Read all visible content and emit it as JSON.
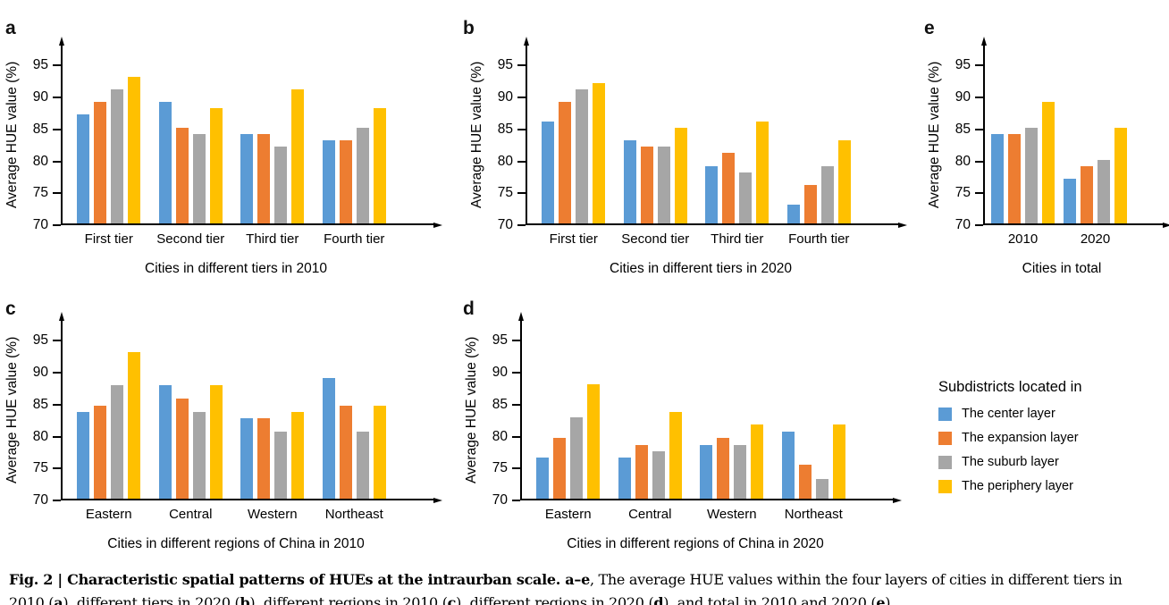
{
  "colors": {
    "center": "#5B9BD5",
    "expansion": "#ED7D31",
    "suburb": "#A6A6A6",
    "periphery": "#FFC000",
    "axis": "#000000"
  },
  "chart_data": [
    {
      "type": "bar",
      "panel_letter": "a",
      "ylabel": "Average HUE value (%)",
      "xlabel": "Cities in different tiers in 2010",
      "ylim": [
        70,
        95
      ],
      "yticks": [
        70,
        75,
        80,
        85,
        90,
        95
      ],
      "grid": false,
      "categories": [
        "First tier",
        "Second tier",
        "Third tier",
        "Fourth tier"
      ],
      "series": [
        {
          "name": "The center layer",
          "color": "#5B9BD5",
          "values": [
            87,
            89,
            84,
            83
          ]
        },
        {
          "name": "The expansion layer",
          "color": "#ED7D31",
          "values": [
            89,
            85,
            84,
            83
          ]
        },
        {
          "name": "The suburb layer",
          "color": "#A6A6A6",
          "values": [
            91,
            84,
            82,
            85
          ]
        },
        {
          "name": "The periphery layer",
          "color": "#FFC000",
          "values": [
            93,
            88,
            91,
            88
          ]
        }
      ]
    },
    {
      "type": "bar",
      "panel_letter": "b",
      "ylabel": "Average HUE value (%)",
      "xlabel": "Cities in different tiers in 2020",
      "ylim": [
        70,
        95
      ],
      "yticks": [
        70,
        75,
        80,
        85,
        90,
        95
      ],
      "grid": false,
      "categories": [
        "First tier",
        "Second tier",
        "Third tier",
        "Fourth tier"
      ],
      "series": [
        {
          "name": "The center layer",
          "color": "#5B9BD5",
          "values": [
            86,
            83,
            79,
            73
          ]
        },
        {
          "name": "The expansion layer",
          "color": "#ED7D31",
          "values": [
            89,
            82,
            81,
            76
          ]
        },
        {
          "name": "The suburb layer",
          "color": "#A6A6A6",
          "values": [
            91,
            82,
            78,
            79
          ]
        },
        {
          "name": "The periphery layer",
          "color": "#FFC000",
          "values": [
            92,
            85,
            86,
            83
          ]
        }
      ]
    },
    {
      "type": "bar",
      "panel_letter": "e",
      "ylabel": "Average HUE value (%)",
      "xlabel": "Cities in total",
      "ylim": [
        70,
        95
      ],
      "yticks": [
        70,
        75,
        80,
        85,
        90,
        95
      ],
      "grid": false,
      "categories": [
        "2010",
        "2020"
      ],
      "series": [
        {
          "name": "The center layer",
          "color": "#5B9BD5",
          "values": [
            84,
            77
          ]
        },
        {
          "name": "The expansion layer",
          "color": "#ED7D31",
          "values": [
            84,
            79
          ]
        },
        {
          "name": "The suburb layer",
          "color": "#A6A6A6",
          "values": [
            85,
            80
          ]
        },
        {
          "name": "The periphery layer",
          "color": "#FFC000",
          "values": [
            89,
            85
          ]
        }
      ]
    },
    {
      "type": "bar",
      "panel_letter": "c",
      "ylabel": "Average HUE value (%)",
      "xlabel": "Cities in different regions of China in 2010",
      "ylim": [
        70,
        95
      ],
      "yticks": [
        70,
        75,
        80,
        85,
        90,
        95
      ],
      "grid": false,
      "categories": [
        "Eastern",
        "Central",
        "Western",
        "Northeast"
      ],
      "series": [
        {
          "name": "The center layer",
          "color": "#5B9BD5",
          "values": [
            83.6,
            87.8,
            82.6,
            88.9
          ]
        },
        {
          "name": "The expansion layer",
          "color": "#ED7D31",
          "values": [
            84.6,
            85.7,
            82.6,
            84.6
          ]
        },
        {
          "name": "The suburb layer",
          "color": "#A6A6A6",
          "values": [
            87.8,
            83.6,
            80.5,
            80.5
          ]
        },
        {
          "name": "The periphery layer",
          "color": "#FFC000",
          "values": [
            93,
            87.8,
            83.6,
            84.6
          ]
        }
      ]
    },
    {
      "type": "bar",
      "panel_letter": "d",
      "ylabel": "Average HUE value (%)",
      "xlabel": "Cities in different regions of China in 2020",
      "ylim": [
        70,
        95
      ],
      "yticks": [
        70,
        75,
        80,
        85,
        90,
        95
      ],
      "grid": false,
      "categories": [
        "Eastern",
        "Central",
        "Western",
        "Northeast"
      ],
      "series": [
        {
          "name": "The center layer",
          "color": "#5B9BD5",
          "values": [
            76.4,
            76.4,
            78.4,
            80.5
          ]
        },
        {
          "name": "The expansion layer",
          "color": "#ED7D31",
          "values": [
            79.5,
            78.4,
            79.5,
            75.3
          ]
        },
        {
          "name": "The suburb layer",
          "color": "#A6A6A6",
          "values": [
            82.7,
            77.4,
            78.4,
            73.1
          ]
        },
        {
          "name": "The periphery layer",
          "color": "#FFC000",
          "values": [
            87.9,
            83.6,
            81.6,
            81.6
          ]
        }
      ]
    }
  ],
  "legend": {
    "title": "Subdistricts located in",
    "items": [
      {
        "label": "The center layer",
        "color": "#5B9BD5"
      },
      {
        "label": "The expansion layer",
        "color": "#ED7D31"
      },
      {
        "label": "The suburb layer",
        "color": "#A6A6A6"
      },
      {
        "label": "The periphery layer",
        "color": "#FFC000"
      }
    ]
  },
  "caption": {
    "segments": [
      {
        "text": "Fig. 2 | Characteristic spatial patterns of HUEs at the intraurban scale. a–e",
        "bold": true
      },
      {
        "text": ", The average HUE values within the four layers of cities in different tiers in 2010 (",
        "bold": false
      },
      {
        "text": "a",
        "bold": true
      },
      {
        "text": "), different tiers in 2020 (",
        "bold": false
      },
      {
        "text": "b",
        "bold": true
      },
      {
        "text": "), different regions in 2010 (",
        "bold": false
      },
      {
        "text": "c",
        "bold": true
      },
      {
        "text": "), different regions in 2020 (",
        "bold": false
      },
      {
        "text": "d",
        "bold": true
      },
      {
        "text": "), and total in 2010 and 2020 (",
        "bold": false
      },
      {
        "text": "e",
        "bold": true
      },
      {
        "text": ").",
        "bold": false
      }
    ]
  }
}
